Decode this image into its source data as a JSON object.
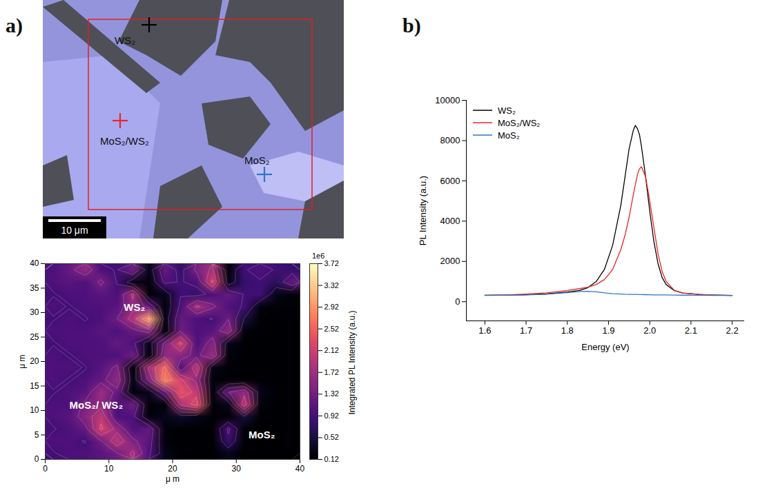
{
  "chart_data": [
    {
      "type": "image",
      "panel": "a)",
      "labels": [
        {
          "text": "WS₂",
          "color": "#000000"
        },
        {
          "text": "MoS₂/WS₂",
          "color": "#e8262b"
        },
        {
          "text": "MoS₂",
          "color": "#2a76c9"
        }
      ],
      "scale_bar": "10 μm"
    },
    {
      "type": "heatmap",
      "xlabel": "μ m",
      "ylabel": "μ m",
      "xlim": [
        0,
        40
      ],
      "ylim": [
        0,
        40
      ],
      "xticks": [
        0,
        10,
        20,
        30,
        40
      ],
      "yticks": [
        0,
        5,
        10,
        15,
        20,
        25,
        30,
        35,
        40
      ],
      "z": [
        [
          1.0,
          1.2,
          1.6,
          1.0,
          0.9,
          1.3,
          0.3,
          1.2,
          0.8,
          1.4,
          1.8,
          0.2,
          0.9,
          1.0,
          0.9,
          0.8
        ],
        [
          1.0,
          1.1,
          1.0,
          1.4,
          0.9,
          0.3,
          0.2,
          1.0,
          0.9,
          1.0,
          2.2,
          0.3,
          0.8,
          0.9,
          0.7,
          1.2
        ],
        [
          0.9,
          1.0,
          1.0,
          1.1,
          1.0,
          1.8,
          0.2,
          0.3,
          0.9,
          0.8,
          1.0,
          1.2,
          0.9,
          0.9,
          0.3,
          0.2
        ],
        [
          1.0,
          0.9,
          1.0,
          1.0,
          1.1,
          1.6,
          1.2,
          0.2,
          1.0,
          1.8,
          1.4,
          1.0,
          0.9,
          0.2,
          0.15,
          0.15
        ],
        [
          0.9,
          1.0,
          0.9,
          1.0,
          1.3,
          1.9,
          3.0,
          0.3,
          1.2,
          1.0,
          0.9,
          1.3,
          0.5,
          0.15,
          0.13,
          0.13
        ],
        [
          1.0,
          1.0,
          1.0,
          1.1,
          1.0,
          1.2,
          1.5,
          0.2,
          1.3,
          1.0,
          1.1,
          1.6,
          0.2,
          0.14,
          0.13,
          0.12
        ],
        [
          0.9,
          1.0,
          1.0,
          1.0,
          1.2,
          1.0,
          0.3,
          1.4,
          2.2,
          1.0,
          1.5,
          0.3,
          0.14,
          0.13,
          0.12,
          0.12
        ],
        [
          1.0,
          0.9,
          1.0,
          1.0,
          1.0,
          1.3,
          0.2,
          1.6,
          1.5,
          1.2,
          1.7,
          0.2,
          0.13,
          0.12,
          0.12,
          0.12
        ],
        [
          1.0,
          1.0,
          0.9,
          1.1,
          1.4,
          0.2,
          1.8,
          2.6,
          1.0,
          2.0,
          0.3,
          0.15,
          0.13,
          0.12,
          0.12,
          0.12
        ],
        [
          1.0,
          0.9,
          1.0,
          1.2,
          1.6,
          0.3,
          1.4,
          2.8,
          2.2,
          1.6,
          0.2,
          0.14,
          0.13,
          0.12,
          0.12,
          0.12
        ],
        [
          0.9,
          1.0,
          1.1,
          1.7,
          1.2,
          0.2,
          0.3,
          1.2,
          2.4,
          2.0,
          0.2,
          1.3,
          1.6,
          0.3,
          0.13,
          0.12
        ],
        [
          1.0,
          1.0,
          1.4,
          1.6,
          1.0,
          1.3,
          0.2,
          0.2,
          1.8,
          2.3,
          0.2,
          0.3,
          2.0,
          0.2,
          0.13,
          0.12
        ],
        [
          1.0,
          1.1,
          1.5,
          2.0,
          1.0,
          1.0,
          0.2,
          0.3,
          0.4,
          0.3,
          0.15,
          0.14,
          0.5,
          0.15,
          0.12,
          0.12
        ],
        [
          0.9,
          1.0,
          1.2,
          2.2,
          1.6,
          1.0,
          1.2,
          0.2,
          0.13,
          0.13,
          0.13,
          1.0,
          0.14,
          0.12,
          0.12,
          0.12
        ],
        [
          1.0,
          1.0,
          0.9,
          1.3,
          2.0,
          1.4,
          1.1,
          0.2,
          0.13,
          0.13,
          0.12,
          0.8,
          0.13,
          0.12,
          0.12,
          0.12
        ],
        [
          0.9,
          1.0,
          1.0,
          1.1,
          1.3,
          1.8,
          1.0,
          0.3,
          0.13,
          0.12,
          0.12,
          0.3,
          0.12,
          0.12,
          0.12,
          0.12
        ]
      ],
      "colorbar": {
        "label": "Integrated PL Intensity (a.u.)",
        "multiplier": "1e6",
        "lim": [
          0.12,
          3.72
        ],
        "ticks": [
          0.12,
          0.52,
          0.92,
          1.32,
          1.72,
          2.12,
          2.52,
          2.92,
          3.32,
          3.72
        ]
      },
      "annotations": [
        {
          "text": "WS₂",
          "x": 14,
          "y": 31
        },
        {
          "text": "MoS₂/ WS₂",
          "x": 8,
          "y": 11
        },
        {
          "text": "MoS₂",
          "x": 34,
          "y": 5
        }
      ]
    },
    {
      "type": "line",
      "panel": "b)",
      "xlabel": "Energy (eV)",
      "ylabel": "PL Intensity (a.u.)",
      "xlim": [
        1.555,
        2.23
      ],
      "ylim": [
        -950,
        10000
      ],
      "xticks": [
        1.6,
        1.7,
        1.8,
        1.9,
        {
          "value": 2,
          "label": "2.0"
        },
        2.1,
        2.2
      ],
      "yticks": [
        0,
        2000,
        4000,
        6000,
        8000,
        10000
      ],
      "legend": "upper left",
      "x": [
        1.6,
        1.65,
        1.7,
        1.75,
        1.8,
        1.83,
        1.85,
        1.87,
        1.89,
        1.91,
        1.93,
        1.94,
        1.95,
        1.96,
        1.965,
        1.97,
        1.975,
        1.98,
        1.99,
        2.0,
        2.01,
        2.02,
        2.03,
        2.04,
        2.06,
        2.08,
        2.12,
        2.16,
        2.2
      ],
      "series": [
        {
          "name": "WS₂",
          "color": "#000000",
          "values": [
            320,
            330,
            350,
            390,
            480,
            560,
            700,
            1000,
            1600,
            2800,
            4800,
            6200,
            7600,
            8500,
            8750,
            8600,
            8300,
            7700,
            6200,
            4500,
            3000,
            1900,
            1200,
            850,
            550,
            430,
            360,
            330,
            310
          ]
        },
        {
          "name": "MoS₂/WS₂",
          "color": "#e8262b",
          "values": [
            320,
            340,
            380,
            440,
            560,
            650,
            720,
            850,
            1100,
            1600,
            2600,
            3300,
            4200,
            5300,
            5800,
            6300,
            6600,
            6700,
            6200,
            5000,
            3700,
            2400,
            1500,
            1000,
            560,
            430,
            360,
            330,
            310
          ]
        },
        {
          "name": "MoS₂",
          "color": "#2a76c9",
          "values": [
            310,
            320,
            340,
            370,
            450,
            510,
            520,
            490,
            440,
            400,
            380,
            370,
            365,
            360,
            360,
            360,
            355,
            355,
            350,
            345,
            340,
            340,
            335,
            335,
            330,
            325,
            320,
            315,
            310
          ]
        }
      ]
    }
  ]
}
